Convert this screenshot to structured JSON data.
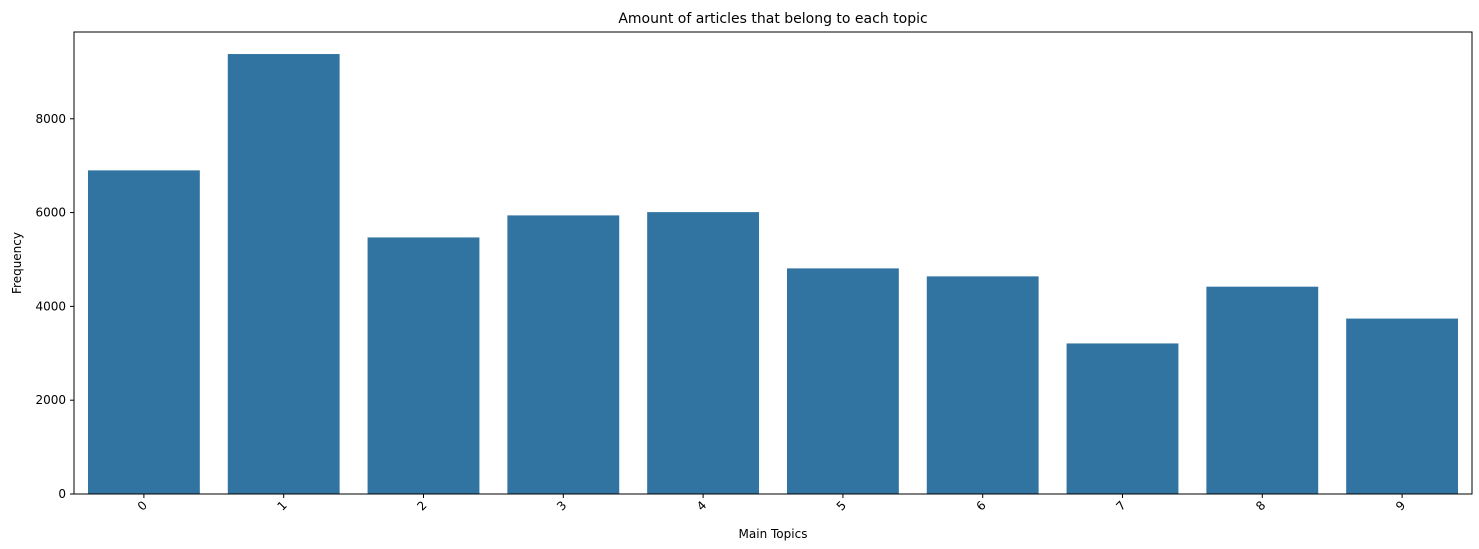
{
  "chart_data": {
    "type": "bar",
    "title": "Amount of articles that belong to each topic",
    "xlabel": "Main Topics",
    "ylabel": "Frequency",
    "categories": [
      "0",
      "1",
      "2",
      "3",
      "4",
      "5",
      "6",
      "7",
      "8",
      "9"
    ],
    "values": [
      6900,
      9380,
      5470,
      5940,
      6010,
      4810,
      4640,
      3210,
      4420,
      3740
    ],
    "ylim": [
      0,
      9850
    ],
    "yticks": [
      0,
      2000,
      4000,
      6000,
      8000
    ],
    "bar_color": "#3274a1",
    "grid": false,
    "legend": "none"
  }
}
